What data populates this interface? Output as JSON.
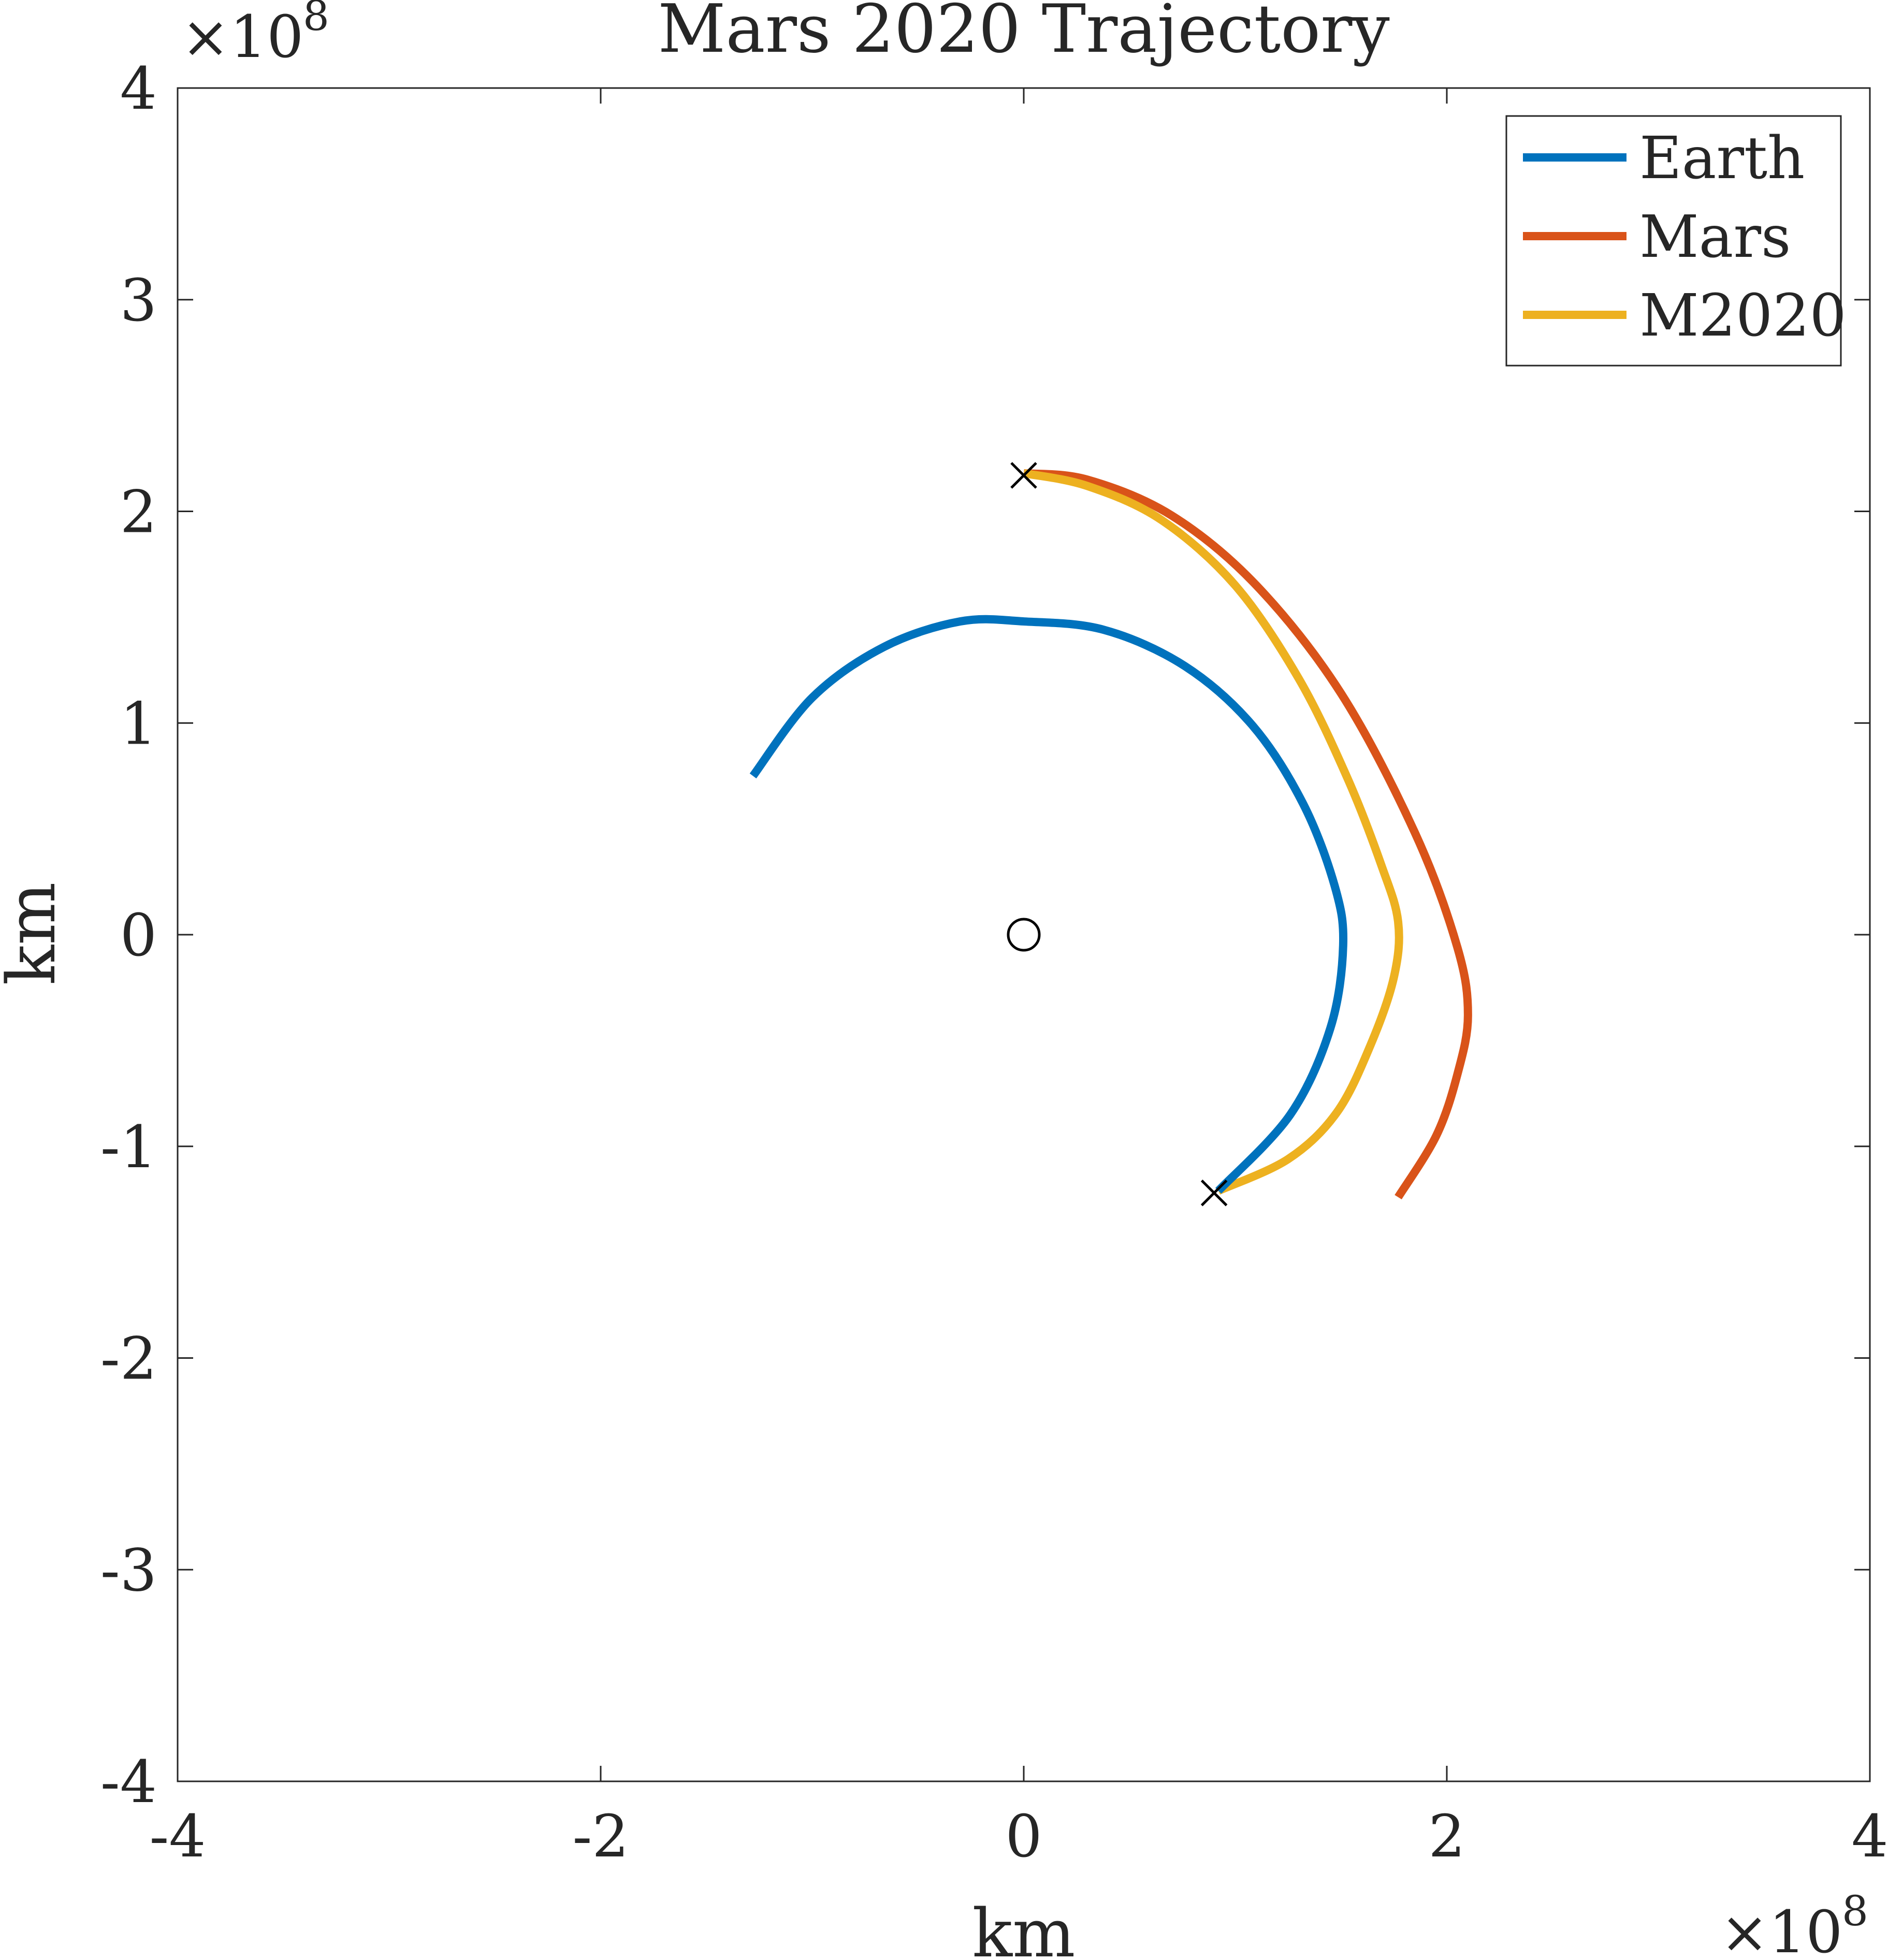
{
  "chart_data": {
    "type": "line",
    "title": "Mars 2020 Trajectory",
    "xlabel": "km",
    "ylabel": "km",
    "xlim": [
      -4,
      4
    ],
    "ylim": [
      -4,
      4
    ],
    "x_exponent_label": "×10",
    "x_exponent_power": "8",
    "y_exponent_label": "×10",
    "y_exponent_power": "8",
    "x_ticks": [
      {
        "value": -4,
        "label": "-4"
      },
      {
        "value": -2,
        "label": "-2"
      },
      {
        "value": 0,
        "label": "0"
      },
      {
        "value": 2,
        "label": "2"
      },
      {
        "value": 4,
        "label": "4"
      }
    ],
    "y_ticks": [
      {
        "value": -4,
        "label": "-4"
      },
      {
        "value": -3,
        "label": "-3"
      },
      {
        "value": -2,
        "label": "-2"
      },
      {
        "value": -1,
        "label": "-1"
      },
      {
        "value": 0,
        "label": "0"
      },
      {
        "value": 1,
        "label": "1"
      },
      {
        "value": 2,
        "label": "2"
      },
      {
        "value": 3,
        "label": "3"
      },
      {
        "value": 4,
        "label": "4"
      }
    ],
    "grid": false,
    "legend_position": "top-right",
    "series": [
      {
        "name": "Earth",
        "color": "#0072BD",
        "x": [
          -1.28,
          -1.0,
          -0.66,
          -0.3,
          0.0,
          0.38,
          0.76,
          1.08,
          1.32,
          1.47,
          1.51,
          1.45,
          1.26,
          0.92
        ],
        "y": [
          0.75,
          1.12,
          1.36,
          1.48,
          1.48,
          1.44,
          1.27,
          0.99,
          0.62,
          0.23,
          -0.05,
          -0.44,
          -0.85,
          -1.21
        ]
      },
      {
        "name": "Mars",
        "color": "#D95319",
        "x": [
          0.0,
          0.3,
          0.7,
          1.1,
          1.5,
          1.85,
          2.05,
          2.1,
          2.05,
          1.95,
          1.77
        ],
        "y": [
          2.18,
          2.15,
          1.98,
          1.65,
          1.14,
          0.48,
          -0.06,
          -0.38,
          -0.66,
          -0.95,
          -1.24
        ]
      },
      {
        "name": "M2020",
        "color": "#EDB120",
        "x": [
          0.0,
          0.3,
          0.65,
          1.0,
          1.3,
          1.53,
          1.69,
          1.77,
          1.75,
          1.64,
          1.48,
          1.25,
          0.92
        ],
        "y": [
          2.18,
          2.12,
          1.96,
          1.65,
          1.21,
          0.74,
          0.33,
          0.06,
          -0.2,
          -0.52,
          -0.84,
          -1.06,
          -1.21
        ]
      }
    ],
    "markers": [
      {
        "type": "cross",
        "x": 0.0,
        "y": 2.17
      },
      {
        "type": "cross",
        "x": 0.9,
        "y": -1.22
      },
      {
        "type": "circle",
        "x": 0.0,
        "y": 0.0
      }
    ]
  }
}
